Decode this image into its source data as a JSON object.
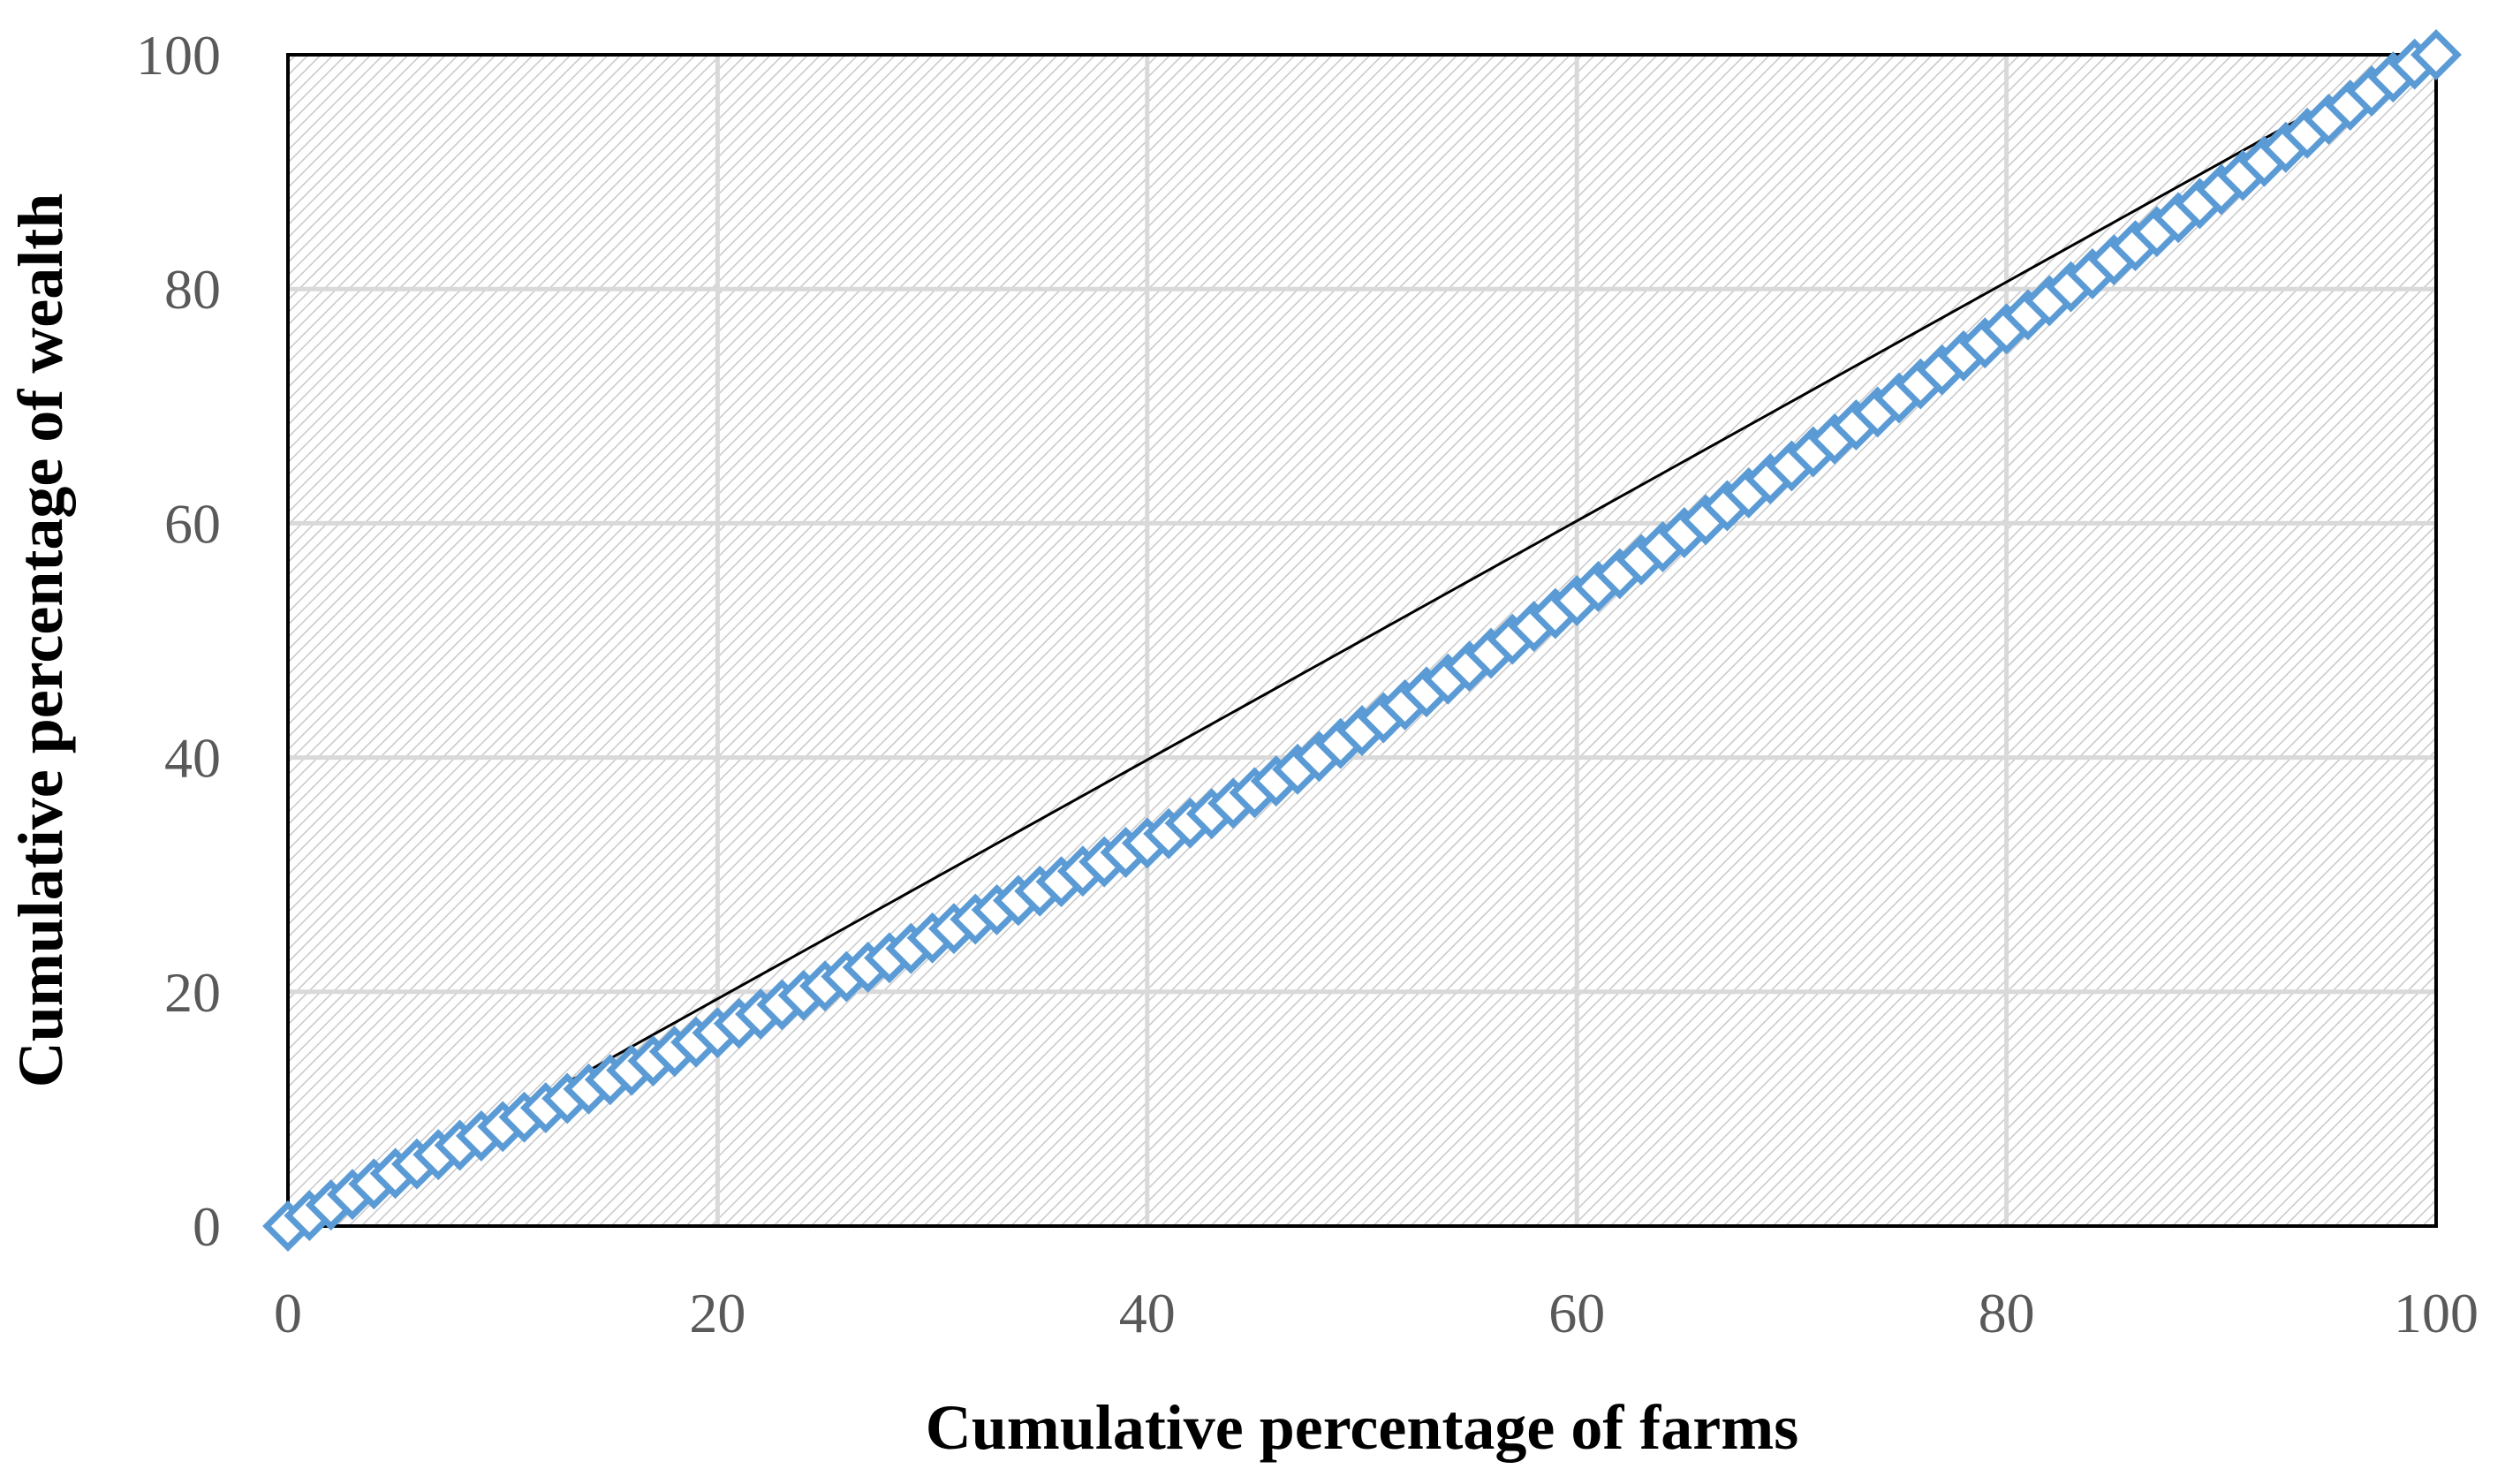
{
  "chart_data": {
    "type": "scatter",
    "title": "",
    "xlabel": "Cumulative percentage of farms",
    "ylabel": "Cumulative percentage of wealth",
    "xlim": [
      0,
      100
    ],
    "ylim": [
      0,
      100
    ],
    "x_ticks": [
      "0",
      "20",
      "40",
      "60",
      "80",
      "100"
    ],
    "y_ticks": [
      "0",
      "20",
      "40",
      "60",
      "80",
      "100"
    ],
    "grid": true,
    "legend": "none",
    "colors": {
      "marker": "#5b9bd5",
      "line": "#000000",
      "grid": "#d9d9d9",
      "hatch": "#c8c8c8",
      "tick_text": "#595959"
    },
    "series": [
      {
        "type": "line",
        "points": [
          [
            0,
            -1
          ],
          [
            100,
            101
          ]
        ]
      },
      {
        "type": "scatter",
        "marker": "diamond",
        "x": [
          0,
          1,
          2,
          3,
          4,
          5,
          6,
          7,
          8,
          9,
          10,
          11,
          12,
          13,
          14,
          15,
          16,
          17,
          18,
          19,
          20,
          21,
          22,
          23,
          24,
          25,
          26,
          27,
          28,
          29,
          30,
          31,
          32,
          33,
          34,
          35,
          36,
          37,
          38,
          39,
          40,
          41,
          42,
          43,
          44,
          45,
          46,
          47,
          48,
          49,
          50,
          51,
          52,
          53,
          54,
          55,
          56,
          57,
          58,
          59,
          60,
          61,
          62,
          63,
          64,
          65,
          66,
          67,
          68,
          69,
          70,
          71,
          72,
          73,
          74,
          75,
          76,
          77,
          78,
          79,
          80,
          81,
          82,
          83,
          84,
          85,
          86,
          87,
          88,
          89,
          90,
          91,
          92,
          93,
          94,
          95,
          96,
          97,
          98,
          99,
          100
        ],
        "y": [
          0,
          0.9,
          1.8,
          2.7,
          3.6,
          4.5,
          5.3,
          6.1,
          6.9,
          7.7,
          8.5,
          9.3,
          10.1,
          10.9,
          11.7,
          12.5,
          13.3,
          14.1,
          14.9,
          15.7,
          16.5,
          17.3,
          18.1,
          18.9,
          19.7,
          20.5,
          21.3,
          22.1,
          22.9,
          23.7,
          24.6,
          25.4,
          26.2,
          27.0,
          27.8,
          28.6,
          29.4,
          30.3,
          31.1,
          31.9,
          32.7,
          33.5,
          34.4,
          35.2,
          36.1,
          37.0,
          38.0,
          39.0,
          40.1,
          41.2,
          42.3,
          43.4,
          44.5,
          45.6,
          46.7,
          47.8,
          48.9,
          50.1,
          51.2,
          52.3,
          53.4,
          54.6,
          55.7,
          56.9,
          58.0,
          59.2,
          60.3,
          61.5,
          62.6,
          63.8,
          64.9,
          66.1,
          67.2,
          68.4,
          69.5,
          70.7,
          71.9,
          73.1,
          74.3,
          75.4,
          76.6,
          77.8,
          79.0,
          80.2,
          81.3,
          82.5,
          83.7,
          84.9,
          86.1,
          87.3,
          88.5,
          89.7,
          90.9,
          92.1,
          93.3,
          94.5,
          95.7,
          96.9,
          98.1,
          99.2,
          100
        ]
      }
    ]
  }
}
